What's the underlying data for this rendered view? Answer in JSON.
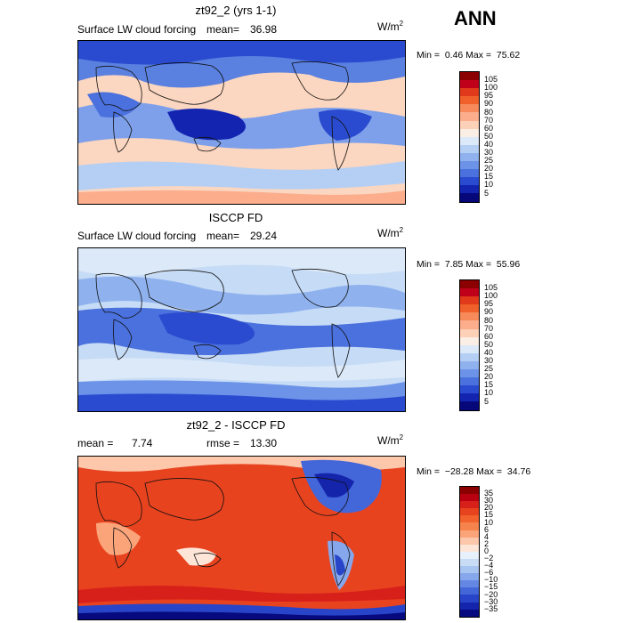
{
  "header": {
    "season": "ANN"
  },
  "panels": [
    {
      "title": "zt92_2 (yrs 1-1)",
      "field_label": "Surface LW cloud forcing",
      "mean_label": "mean=",
      "mean_value": "36.98",
      "units_base": "W/m",
      "units_exp": "2",
      "min_label": "Min =",
      "min_value": "0.46",
      "max_label": "Max =",
      "max_value": "75.62",
      "colorbar": {
        "labels": [
          "105",
          "100",
          "95",
          "90",
          "80",
          "70",
          "60",
          "50",
          "40",
          "30",
          "25",
          "20",
          "15",
          "10",
          "5"
        ],
        "colors": [
          "#8b0000",
          "#c0001a",
          "#e03a1a",
          "#f0602a",
          "#f78a5a",
          "#fbad8c",
          "#fdd0b8",
          "#fbeee4",
          "#dbe9f8",
          "#b4cff3",
          "#8fb2ee",
          "#6c93e8",
          "#4a71dd",
          "#2a4bcf",
          "#1224b0",
          "#06087a"
        ]
      }
    },
    {
      "title": "ISCCP FD",
      "field_label": "Surface LW cloud forcing",
      "mean_label": "mean=",
      "mean_value": "29.24",
      "units_base": "W/m",
      "units_exp": "2",
      "min_label": "Min =",
      "min_value": "7.85",
      "max_label": "Max =",
      "max_value": "55.96",
      "colorbar": {
        "labels": [
          "105",
          "100",
          "95",
          "90",
          "80",
          "70",
          "60",
          "50",
          "40",
          "30",
          "25",
          "20",
          "15",
          "10",
          "5"
        ],
        "colors": [
          "#8b0000",
          "#c0001a",
          "#e03a1a",
          "#f0602a",
          "#f78a5a",
          "#fbad8c",
          "#fdd0b8",
          "#fbeee4",
          "#dbe9f8",
          "#b4cff3",
          "#8fb2ee",
          "#6c93e8",
          "#4a71dd",
          "#2a4bcf",
          "#1224b0",
          "#06087a"
        ]
      }
    },
    {
      "title": "zt92_2 - ISCCP FD",
      "mean_label": "mean =",
      "mean_value": "7.74",
      "rmse_label": "rmse =",
      "rmse_value": "13.30",
      "units_base": "W/m",
      "units_exp": "2",
      "min_label": "Min =",
      "min_value": "−28.28",
      "max_label": "Max =",
      "max_value": "34.76",
      "colorbar": {
        "labels": [
          "35",
          "30",
          "20",
          "15",
          "10",
          "6",
          "4",
          "2",
          "0",
          "−2",
          "−4",
          "−6",
          "−10",
          "−15",
          "−20",
          "−30",
          "−35"
        ],
        "colors": [
          "#8b0000",
          "#b80010",
          "#d8201a",
          "#e8431f",
          "#f2622c",
          "#f7834c",
          "#fba47a",
          "#fcc7aa",
          "#fde6d8",
          "#e7f0fb",
          "#c9dcf6",
          "#a8c4f1",
          "#86a7eb",
          "#6487e3",
          "#4366d9",
          "#2845c9",
          "#1424ab",
          "#060a7e"
        ]
      }
    }
  ]
}
